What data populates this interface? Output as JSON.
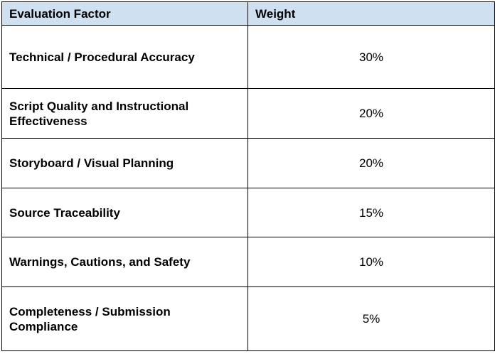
{
  "table": {
    "headers": [
      "Evaluation Factor",
      "Weight"
    ],
    "rows": [
      {
        "factor": "Technical / Procedural Accuracy",
        "weight": "30%"
      },
      {
        "factor": "Script Quality and Instructional Effectiveness",
        "weight": "20%"
      },
      {
        "factor": "Storyboard / Visual Planning",
        "weight": "20%"
      },
      {
        "factor": "Source Traceability",
        "weight": "15%"
      },
      {
        "factor": "Warnings, Cautions, and Safety",
        "weight": "10%"
      },
      {
        "factor": "Completeness / Submission Compliance",
        "weight": "5%"
      }
    ]
  },
  "colors": {
    "header_background": "#cfe0f1",
    "border": "#000000",
    "text": "#000000"
  }
}
